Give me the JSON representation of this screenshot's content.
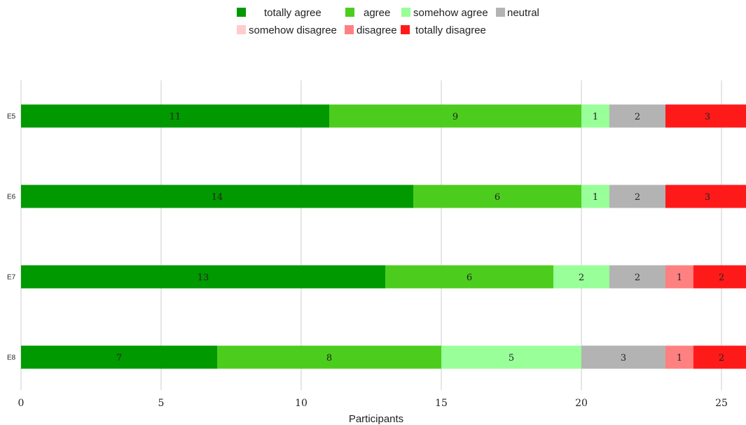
{
  "chart_data": {
    "type": "bar",
    "orientation": "horizontal",
    "stacked": true,
    "categories": [
      "E5",
      "E6",
      "E7",
      "E8"
    ],
    "series": [
      {
        "name": "totally agree",
        "color": "#009900",
        "values": [
          11,
          14,
          13,
          7
        ]
      },
      {
        "name": "agree",
        "color": "#4ccd1d",
        "values": [
          9,
          6,
          6,
          8
        ]
      },
      {
        "name": "somehow agree",
        "color": "#99ff99",
        "values": [
          1,
          1,
          2,
          5
        ]
      },
      {
        "name": "neutral",
        "color": "#b3b3b3",
        "values": [
          2,
          2,
          2,
          3
        ]
      },
      {
        "name": "somehow disagree",
        "color": "#ffcccc",
        "values": [
          0,
          0,
          0,
          0
        ]
      },
      {
        "name": "disagree",
        "color": "#ff8080",
        "values": [
          0,
          0,
          1,
          1
        ]
      },
      {
        "name": "totally disagree",
        "color": "#ff1a1a",
        "values": [
          3,
          3,
          2,
          2
        ]
      }
    ],
    "xlabel": "Participants",
    "ylabel": "",
    "title": "",
    "xlim": [
      0,
      26
    ],
    "xticks": [
      0,
      5,
      10,
      15,
      20,
      25
    ],
    "grid": "vertical",
    "legend_position": "top-center",
    "show_values": true
  }
}
